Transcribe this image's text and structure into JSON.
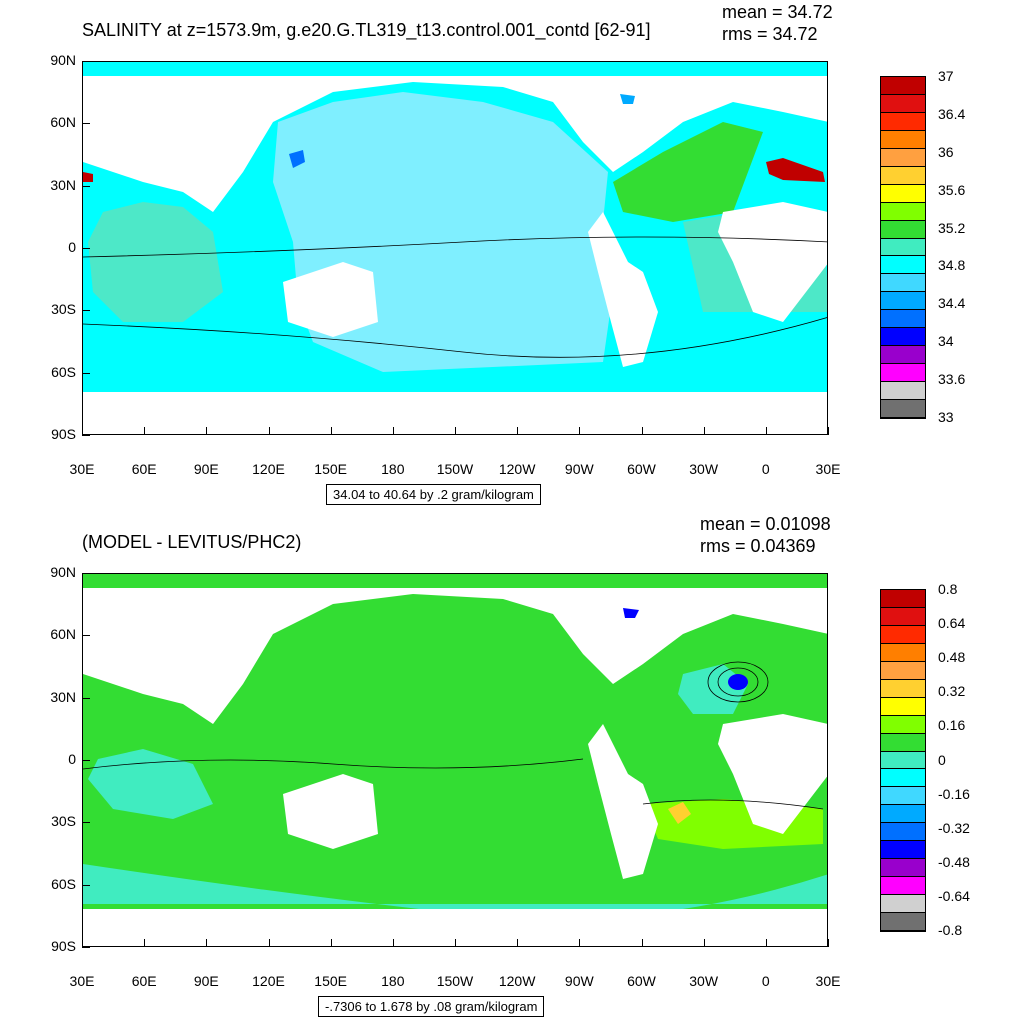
{
  "chart_data": [
    {
      "type": "heatmap",
      "title": "SALINITY at z=1573.9m, g.e20.G.TL319_t13.control.001_contd [62-91]",
      "mean_text": "mean = 34.72",
      "rms_text": "rms = 34.72",
      "caption": "34.04 to 40.64 by .2 gram/kilogram",
      "yticks": [
        "90N",
        "60N",
        "30N",
        "0",
        "30S",
        "60S",
        "90S"
      ],
      "xticks": [
        "30E",
        "60E",
        "90E",
        "120E",
        "150E",
        "180",
        "150W",
        "120W",
        "90W",
        "60W",
        "30W",
        "0",
        "30E"
      ],
      "colorbar": {
        "colors": [
          "#c00000",
          "#e01010",
          "#ff2a00",
          "#ff7f00",
          "#ffa040",
          "#ffd030",
          "#ffff00",
          "#80ff00",
          "#33dd33",
          "#40ecc0",
          "#00ffff",
          "#40d8ff",
          "#00aaff",
          "#0070ff",
          "#0000ff",
          "#9900cc",
          "#ff00ff",
          "#d0d0d0",
          "#707070"
        ],
        "labels": [
          "37",
          "36.4",
          "36",
          "35.6",
          "35.2",
          "34.8",
          "34.4",
          "34",
          "33.6",
          "33"
        ]
      },
      "regions": {
        "atlantic": "#33dd33",
        "pacific": "#7fefff",
        "indian": "#4de8c8",
        "southern": "#00ffff",
        "mediterranean": "#c00000",
        "japan_sea": "#0070ff",
        "baffin": "#00aaff"
      }
    },
    {
      "type": "heatmap",
      "title": "(MODEL - LEVITUS/PHC2)",
      "mean_text": "mean = 0.01098",
      "rms_text": "rms = 0.04369",
      "caption": "-.7306 to 1.678 by .08 gram/kilogram",
      "yticks": [
        "90N",
        "60N",
        "30N",
        "0",
        "30S",
        "60S",
        "90S"
      ],
      "xticks": [
        "30E",
        "60E",
        "90E",
        "120E",
        "150E",
        "180",
        "150W",
        "120W",
        "90W",
        "60W",
        "30W",
        "0",
        "30E"
      ],
      "colorbar": {
        "colors": [
          "#c00000",
          "#e01010",
          "#ff2a00",
          "#ff7f00",
          "#ffa040",
          "#ffd030",
          "#ffff00",
          "#80ff00",
          "#33dd33",
          "#40ecc0",
          "#00ffff",
          "#40d8ff",
          "#00aaff",
          "#0070ff",
          "#0000ff",
          "#9900cc",
          "#ff00ff",
          "#d0d0d0",
          "#707070"
        ],
        "labels": [
          "0.8",
          "0.64",
          "0.48",
          "0.32",
          "0.16",
          "0",
          "-0.16",
          "-0.32",
          "-0.48",
          "-0.64",
          "-0.8"
        ]
      },
      "regions": {
        "background": "#33dd33",
        "indian_patch": "#40ecc0",
        "south_atlantic": "#80ff00",
        "southern_band": "#40ecc0",
        "north_atlantic_anomaly": "#0000ff",
        "hotspot": "#ffd030"
      }
    }
  ]
}
